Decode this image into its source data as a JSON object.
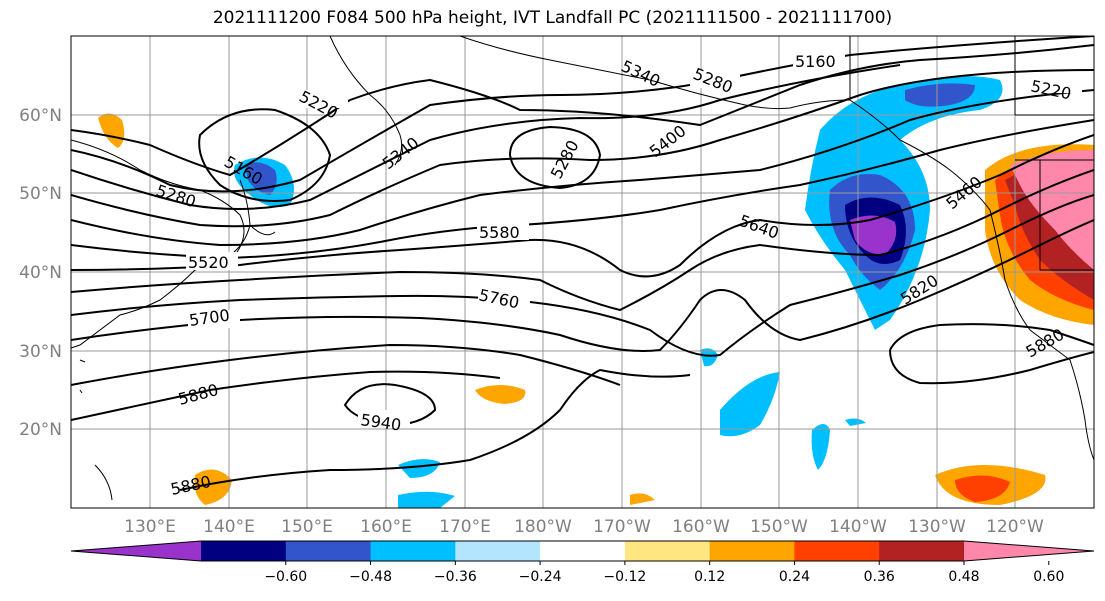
{
  "title": "2021111200 F084 500 hPa height, IVT Landfall PC (2021111500 - 2021111700)",
  "map": {
    "lat_labels": [
      "60°N",
      "50°N",
      "40°N",
      "30°N",
      "20°N"
    ],
    "lon_labels": [
      "130°E",
      "140°E",
      "150°E",
      "160°E",
      "170°E",
      "180°W",
      "170°W",
      "160°W",
      "150°W",
      "140°W",
      "130°W",
      "120°W"
    ],
    "contour_labels": [
      "5160",
      "5220",
      "5220",
      "5280",
      "5280",
      "5340",
      "5340",
      "5160",
      "5280",
      "5400",
      "5520",
      "5580",
      "5640",
      "5700",
      "5760",
      "5820",
      "5880",
      "5880",
      "5880",
      "5940",
      "5460"
    ],
    "gridline_color": "#999999",
    "contour_color": "#000000",
    "land_outline_color": "#000000"
  },
  "colorbar": {
    "tick_labels": [
      "−0.60",
      "−0.48",
      "−0.36",
      "−0.24",
      "−0.12",
      "0.12",
      "0.24",
      "0.36",
      "0.48",
      "0.60"
    ],
    "colors": [
      "#9933cc",
      "#000080",
      "#3355cc",
      "#00bfff",
      "#b3e5ff",
      "#ffffff",
      "#ffe680",
      "#ffa500",
      "#ff4000",
      "#b22222",
      "#ff88aa"
    ]
  }
}
